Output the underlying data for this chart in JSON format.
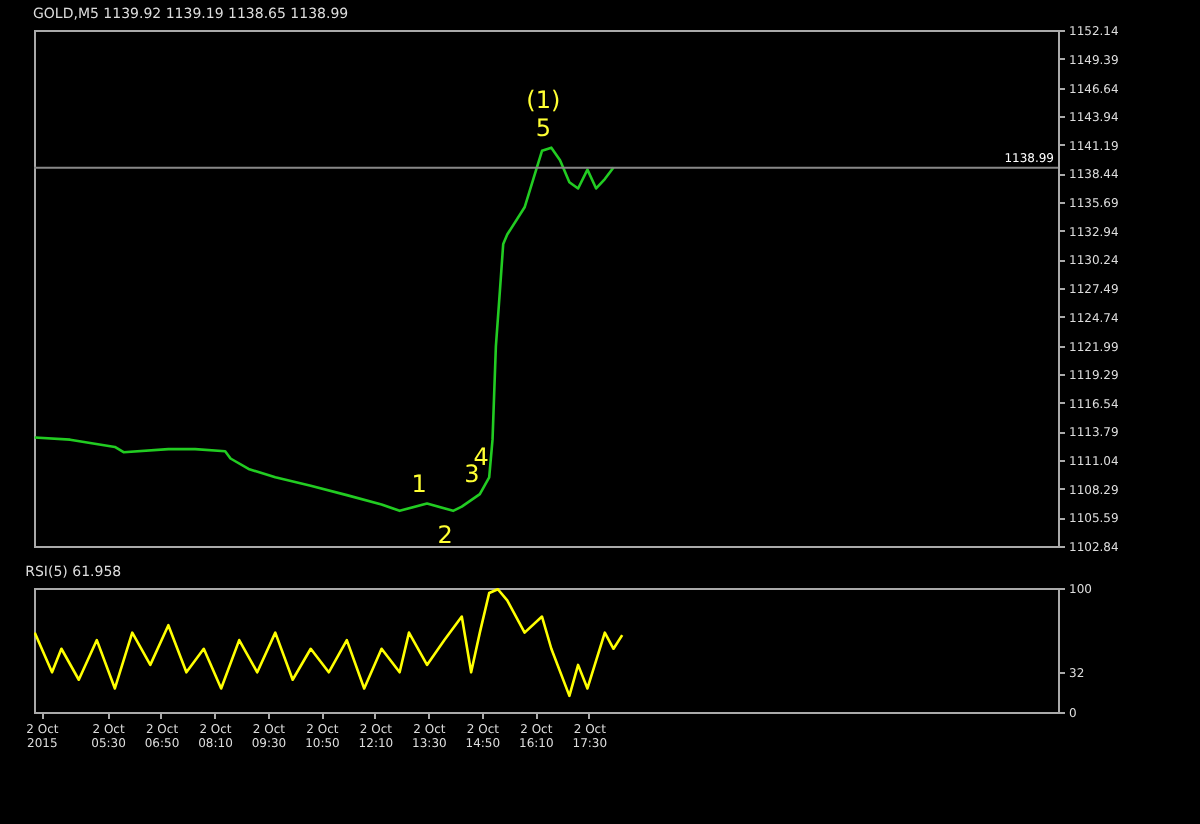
{
  "chart_data": [
    {
      "type": "line",
      "title": "GOLD,M5  1139.92 1139.19 1138.65 1138.99",
      "x": [
        "2015-10-02T03:41",
        "2015-10-02T04:34",
        "2015-10-02T05:41",
        "2015-10-02T05:54",
        "2015-10-02T07:01",
        "2015-10-02T07:41",
        "2015-10-02T08:26",
        "2015-10-02T08:34",
        "2015-10-02T09:01",
        "2015-10-02T09:41",
        "2015-10-02T10:34",
        "2015-10-02T11:28",
        "2015-10-02T12:20",
        "2015-10-02T12:47",
        "2015-10-02T13:28",
        "2015-10-02T14:07",
        "2015-10-02T14:20",
        "2015-10-02T14:47",
        "2015-10-02T15:01",
        "2015-10-02T15:06",
        "2015-10-02T15:11",
        "2015-10-02T15:17",
        "2015-10-02T15:22",
        "2015-10-02T15:28",
        "2015-10-02T15:54",
        "2015-10-02T16:07",
        "2015-10-02T16:20",
        "2015-10-02T16:34",
        "2015-10-02T16:47",
        "2015-10-02T17:01",
        "2015-10-02T17:14",
        "2015-10-02T17:28",
        "2015-10-02T17:41",
        "2015-10-02T17:54",
        "2015-10-02T18:07"
      ],
      "series": [
        {
          "color": "#22cc22",
          "values": [
            1113.2,
            1113.0,
            1112.3,
            1111.8,
            1112.1,
            1112.1,
            1111.9,
            1111.2,
            1110.2,
            1109.4,
            1108.6,
            1107.7,
            1106.8,
            1106.2,
            1106.9,
            1106.2,
            1106.6,
            1107.8,
            1109.4,
            1113.0,
            1121.9,
            1127.2,
            1131.7,
            1132.6,
            1135.2,
            1137.9,
            1140.6,
            1140.9,
            1139.7,
            1137.6,
            1137.0,
            1138.8,
            1137.0,
            1137.9,
            1139.0
          ]
        }
      ],
      "xlim": [
        "2015-10-02T03:40",
        "2015-10-03T05:12"
      ],
      "ylim": [
        1102.84,
        1152.14
      ],
      "yticks": [
        1102.84,
        1105.59,
        1108.29,
        1111.04,
        1113.79,
        1116.54,
        1119.29,
        1121.99,
        1124.74,
        1127.49,
        1130.24,
        1132.94,
        1135.69,
        1138.44,
        1141.19,
        1143.94,
        1146.64,
        1149.39,
        1152.14
      ],
      "tick_labels": "y",
      "ref_lines": [
        {
          "axis": "y",
          "value": 1138.99,
          "label": "1138.99",
          "color": "#888888"
        }
      ],
      "annotations": [
        {
          "text": "(1)",
          "x": "2015-10-02T16:34",
          "y": 1140.9
        },
        {
          "text": "5",
          "x": "2015-10-02T16:34",
          "y": 1140.9
        },
        {
          "text": "1",
          "x": "2015-10-02T13:28",
          "y": 1106.9
        },
        {
          "text": "2",
          "x": "2015-10-02T14:07",
          "y": 1106.2
        },
        {
          "text": "3",
          "x": "2015-10-02T14:47",
          "y": 1107.8
        },
        {
          "text": "4",
          "x": "2015-10-02T15:01",
          "y": 1109.4
        }
      ]
    },
    {
      "type": "line",
      "title": "RSI(5) 61.958",
      "x": [
        "2015-10-02T03:41",
        "2015-10-02T04:07",
        "2015-10-02T04:21",
        "2015-10-02T04:47",
        "2015-10-02T05:14",
        "2015-10-02T05:41",
        "2015-10-02T06:07",
        "2015-10-02T06:34",
        "2015-10-02T07:01",
        "2015-10-02T07:28",
        "2015-10-02T07:54",
        "2015-10-02T08:20",
        "2015-10-02T08:47",
        "2015-10-02T09:14",
        "2015-10-02T09:41",
        "2015-10-02T10:07",
        "2015-10-02T10:34",
        "2015-10-02T11:01",
        "2015-10-02T11:28",
        "2015-10-02T11:54",
        "2015-10-02T12:20",
        "2015-10-02T12:47",
        "2015-10-02T13:01",
        "2015-10-02T13:28",
        "2015-10-02T13:54",
        "2015-10-02T14:20",
        "2015-10-02T14:34",
        "2015-10-02T14:47",
        "2015-10-02T15:01",
        "2015-10-02T15:14",
        "2015-10-02T15:28",
        "2015-10-02T15:54",
        "2015-10-02T16:20",
        "2015-10-02T16:34",
        "2015-10-02T17:01",
        "2015-10-02T17:14",
        "2015-10-02T17:28",
        "2015-10-02T17:54",
        "2015-10-02T18:07",
        "2015-10-02T18:20"
      ],
      "series": [
        {
          "color": "#ffff00",
          "values": [
            64,
            32,
            51,
            26,
            58,
            19,
            64,
            38,
            70,
            32,
            51,
            19,
            58,
            32,
            64,
            26,
            51,
            32,
            58,
            19,
            51,
            32,
            64,
            38,
            58,
            77,
            32,
            64,
            96,
            99,
            90,
            64,
            77,
            51,
            13,
            38,
            19,
            64,
            51,
            62
          ]
        }
      ],
      "xlim": [
        "2015-10-02T03:40",
        "2015-10-03T05:12"
      ],
      "ylim": [
        0,
        100
      ],
      "yticks": [
        0,
        32,
        100
      ],
      "xticks": [
        {
          "value": "2015-10-02T03:51",
          "label": "2 Oct 2015"
        },
        {
          "value": "2015-10-02T05:30",
          "label": "2 Oct 05:30"
        },
        {
          "value": "2015-10-02T06:50",
          "label": "2 Oct 06:50"
        },
        {
          "value": "2015-10-02T08:10",
          "label": "2 Oct 08:10"
        },
        {
          "value": "2015-10-02T09:30",
          "label": "2 Oct 09:30"
        },
        {
          "value": "2015-10-02T10:50",
          "label": "2 Oct 10:50"
        },
        {
          "value": "2015-10-02T12:10",
          "label": "2 Oct 12:10"
        },
        {
          "value": "2015-10-02T13:30",
          "label": "2 Oct 13:30"
        },
        {
          "value": "2015-10-02T14:50",
          "label": "2 Oct 14:50"
        },
        {
          "value": "2015-10-02T16:10",
          "label": "2 Oct 16:10"
        },
        {
          "value": "2015-10-02T17:30",
          "label": "2 Oct 17:30"
        }
      ]
    }
  ]
}
